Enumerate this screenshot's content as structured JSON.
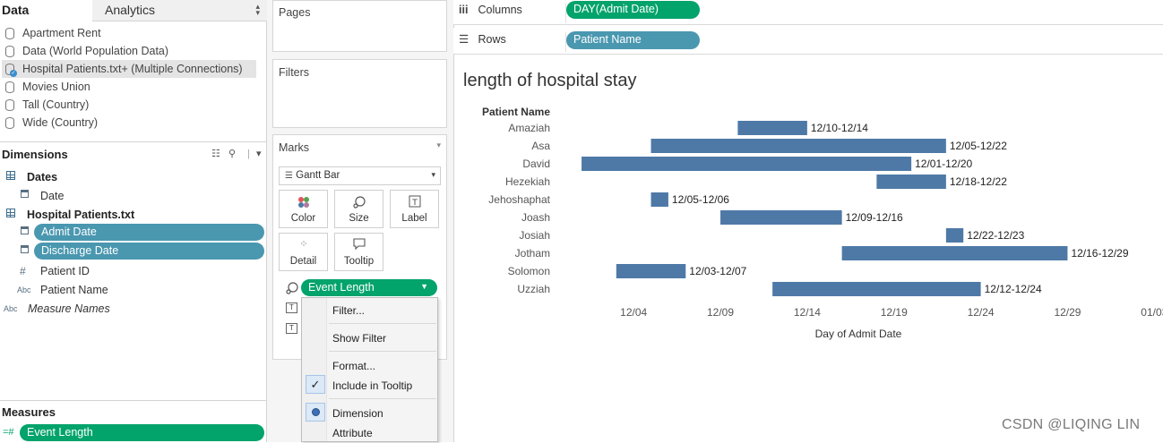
{
  "left": {
    "tabs": {
      "data": "Data",
      "analytics": "Analytics"
    },
    "datasources": [
      {
        "label": "Apartment Rent",
        "selected": false
      },
      {
        "label": "Data (World Population Data)",
        "selected": false
      },
      {
        "label": "Hospital Patients.txt+ (Multiple Connections)",
        "selected": true
      },
      {
        "label": "Movies Union",
        "selected": false
      },
      {
        "label": "Tall (Country)",
        "selected": false
      },
      {
        "label": "Wide (Country)",
        "selected": false
      }
    ],
    "dimensions_header": "Dimensions",
    "groups": {
      "dates": "Dates",
      "hospital": "Hospital Patients.txt"
    },
    "fields": {
      "date": "Date",
      "admit_date": "Admit Date",
      "discharge_date": "Discharge Date",
      "patient_id": "Patient ID",
      "patient_name": "Patient Name",
      "measure_names": "Measure Names"
    },
    "type_glyphs": {
      "abc": "Abc",
      "hash": "#"
    },
    "measures_header": "Measures",
    "measures": {
      "event_length": "Event Length"
    },
    "colors": {
      "dimension_pill": "#4a97b0",
      "measure_pill": "#03a36c"
    }
  },
  "mid": {
    "pages": "Pages",
    "filters": "Filters",
    "marks": "Marks",
    "mark_type": "Gantt Bar",
    "buttons": {
      "color": "Color",
      "size": "Size",
      "label": "Label",
      "detail": "Detail",
      "tooltip": "Tooltip"
    },
    "size_pill": "Event Length"
  },
  "menu": {
    "items": {
      "filter": "Filter...",
      "show_filter": "Show Filter",
      "format": "Format...",
      "include_tooltip": "Include in Tooltip",
      "dimension": "Dimension",
      "attribute": "Attribute"
    },
    "check_glyph": "✓"
  },
  "shelves": {
    "columns_label": "Columns",
    "columns_pill": "DAY(Admit Date)",
    "rows_label": "Rows",
    "rows_pill": "Patient Name"
  },
  "view": {
    "title": "length of hospital stay"
  },
  "watermark": "CSDN @LIQING LIN",
  "chart_data": {
    "type": "gantt",
    "row_header": "Patient Name",
    "xlabel": "Day of Admit Date",
    "x_ticks": [
      "12/04",
      "12/09",
      "12/14",
      "12/19",
      "12/24",
      "12/29",
      "01/03"
    ],
    "x_tick_offsets": [
      4,
      9,
      14,
      19,
      24,
      29,
      34
    ],
    "xlim": [
      -0.5,
      34.5
    ],
    "bar_color": "#4e79a7",
    "rows": [
      {
        "name": "Amaziah",
        "start": 10,
        "end": 14,
        "label": "12/10-12/14"
      },
      {
        "name": "Asa",
        "start": 5,
        "end": 22,
        "label": "12/05-12/22"
      },
      {
        "name": "David",
        "start": 1,
        "end": 20,
        "label": "12/01-12/20"
      },
      {
        "name": "Hezekiah",
        "start": 18,
        "end": 22,
        "label": "12/18-12/22"
      },
      {
        "name": "Jehoshaphat",
        "start": 5,
        "end": 6,
        "label": "12/05-12/06"
      },
      {
        "name": "Joash",
        "start": 9,
        "end": 16,
        "label": "12/09-12/16"
      },
      {
        "name": "Josiah",
        "start": 22,
        "end": 23,
        "label": "12/22-12/23"
      },
      {
        "name": "Jotham",
        "start": 16,
        "end": 29,
        "label": "12/16-12/29"
      },
      {
        "name": "Solomon",
        "start": 3,
        "end": 7,
        "label": "12/03-12/07"
      },
      {
        "name": "Uzziah",
        "start": 12,
        "end": 24,
        "label": "12/12-12/24"
      }
    ]
  }
}
